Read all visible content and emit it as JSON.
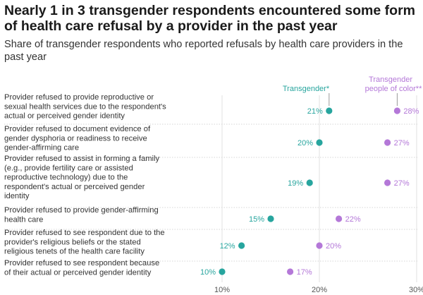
{
  "title": "Nearly 1 in 3 transgender respondents encountered some form of health care refusal by a provider in the past year",
  "subtitle": "Share of transgender respondents who reported refusals by health care providers in the past year",
  "colors": {
    "transgender": "#27a59e",
    "poc": "#b478d8"
  },
  "chart_data": {
    "type": "scatter",
    "chart_form": "dot plot",
    "categories": [
      "Provider refused to provide reproductive or sexual health services due to the respondent's actual or perceived gender identity",
      "Provider refused to document evidence of gender dysphoria or readiness to receive gender-affirming care",
      "Provider refused to assist in forming a family (e.g., provide fertility care or assisted reproductive technology) due to the respondent's actual or perceived gender identity",
      "Provider refused to provide gender-affirming health care",
      "Provider refused to see respondent due to the provider's religious beliefs or the stated religious tenets of the health care facility",
      "Provider refused to see respondent because of their actual or perceived gender identity"
    ],
    "category_lines": [
      [
        "Provider refused to provide reproductive or",
        "sexual health services due to the respondent's",
        "actual or perceived gender identity"
      ],
      [
        "Provider refused to document evidence of",
        "gender dysphoria or readiness to receive",
        "gender-affirming care"
      ],
      [
        "Provider refused to assist in forming a family",
        "(e.g., provide fertility care or assisted",
        "reproductive technology) due to the",
        "respondent's actual or perceived gender",
        "identity"
      ],
      [
        "Provider refused to provide gender-affirming",
        "health care"
      ],
      [
        "Provider refused to see respondent due to the",
        "provider's religious beliefs or the stated",
        "religious tenets of the health care facility"
      ],
      [
        "Provider refused to see respondent because",
        "of their actual or perceived gender identity"
      ]
    ],
    "series": [
      {
        "name": "Transgender*",
        "color": "#27a59e",
        "values": [
          21,
          20,
          19,
          15,
          12,
          10
        ]
      },
      {
        "name": "Transgender people of color**",
        "legend_lines": [
          "Transgender",
          "people of color**"
        ],
        "color": "#b478d8",
        "values": [
          28,
          27,
          27,
          22,
          20,
          17
        ]
      }
    ],
    "value_suffix": "%",
    "x_ticks": [
      10,
      20,
      30
    ],
    "x_tick_labels": [
      "10%",
      "20%",
      "30%"
    ],
    "xlim": [
      10,
      30
    ],
    "grid": true,
    "legend": "top, above the first dots of each series"
  }
}
